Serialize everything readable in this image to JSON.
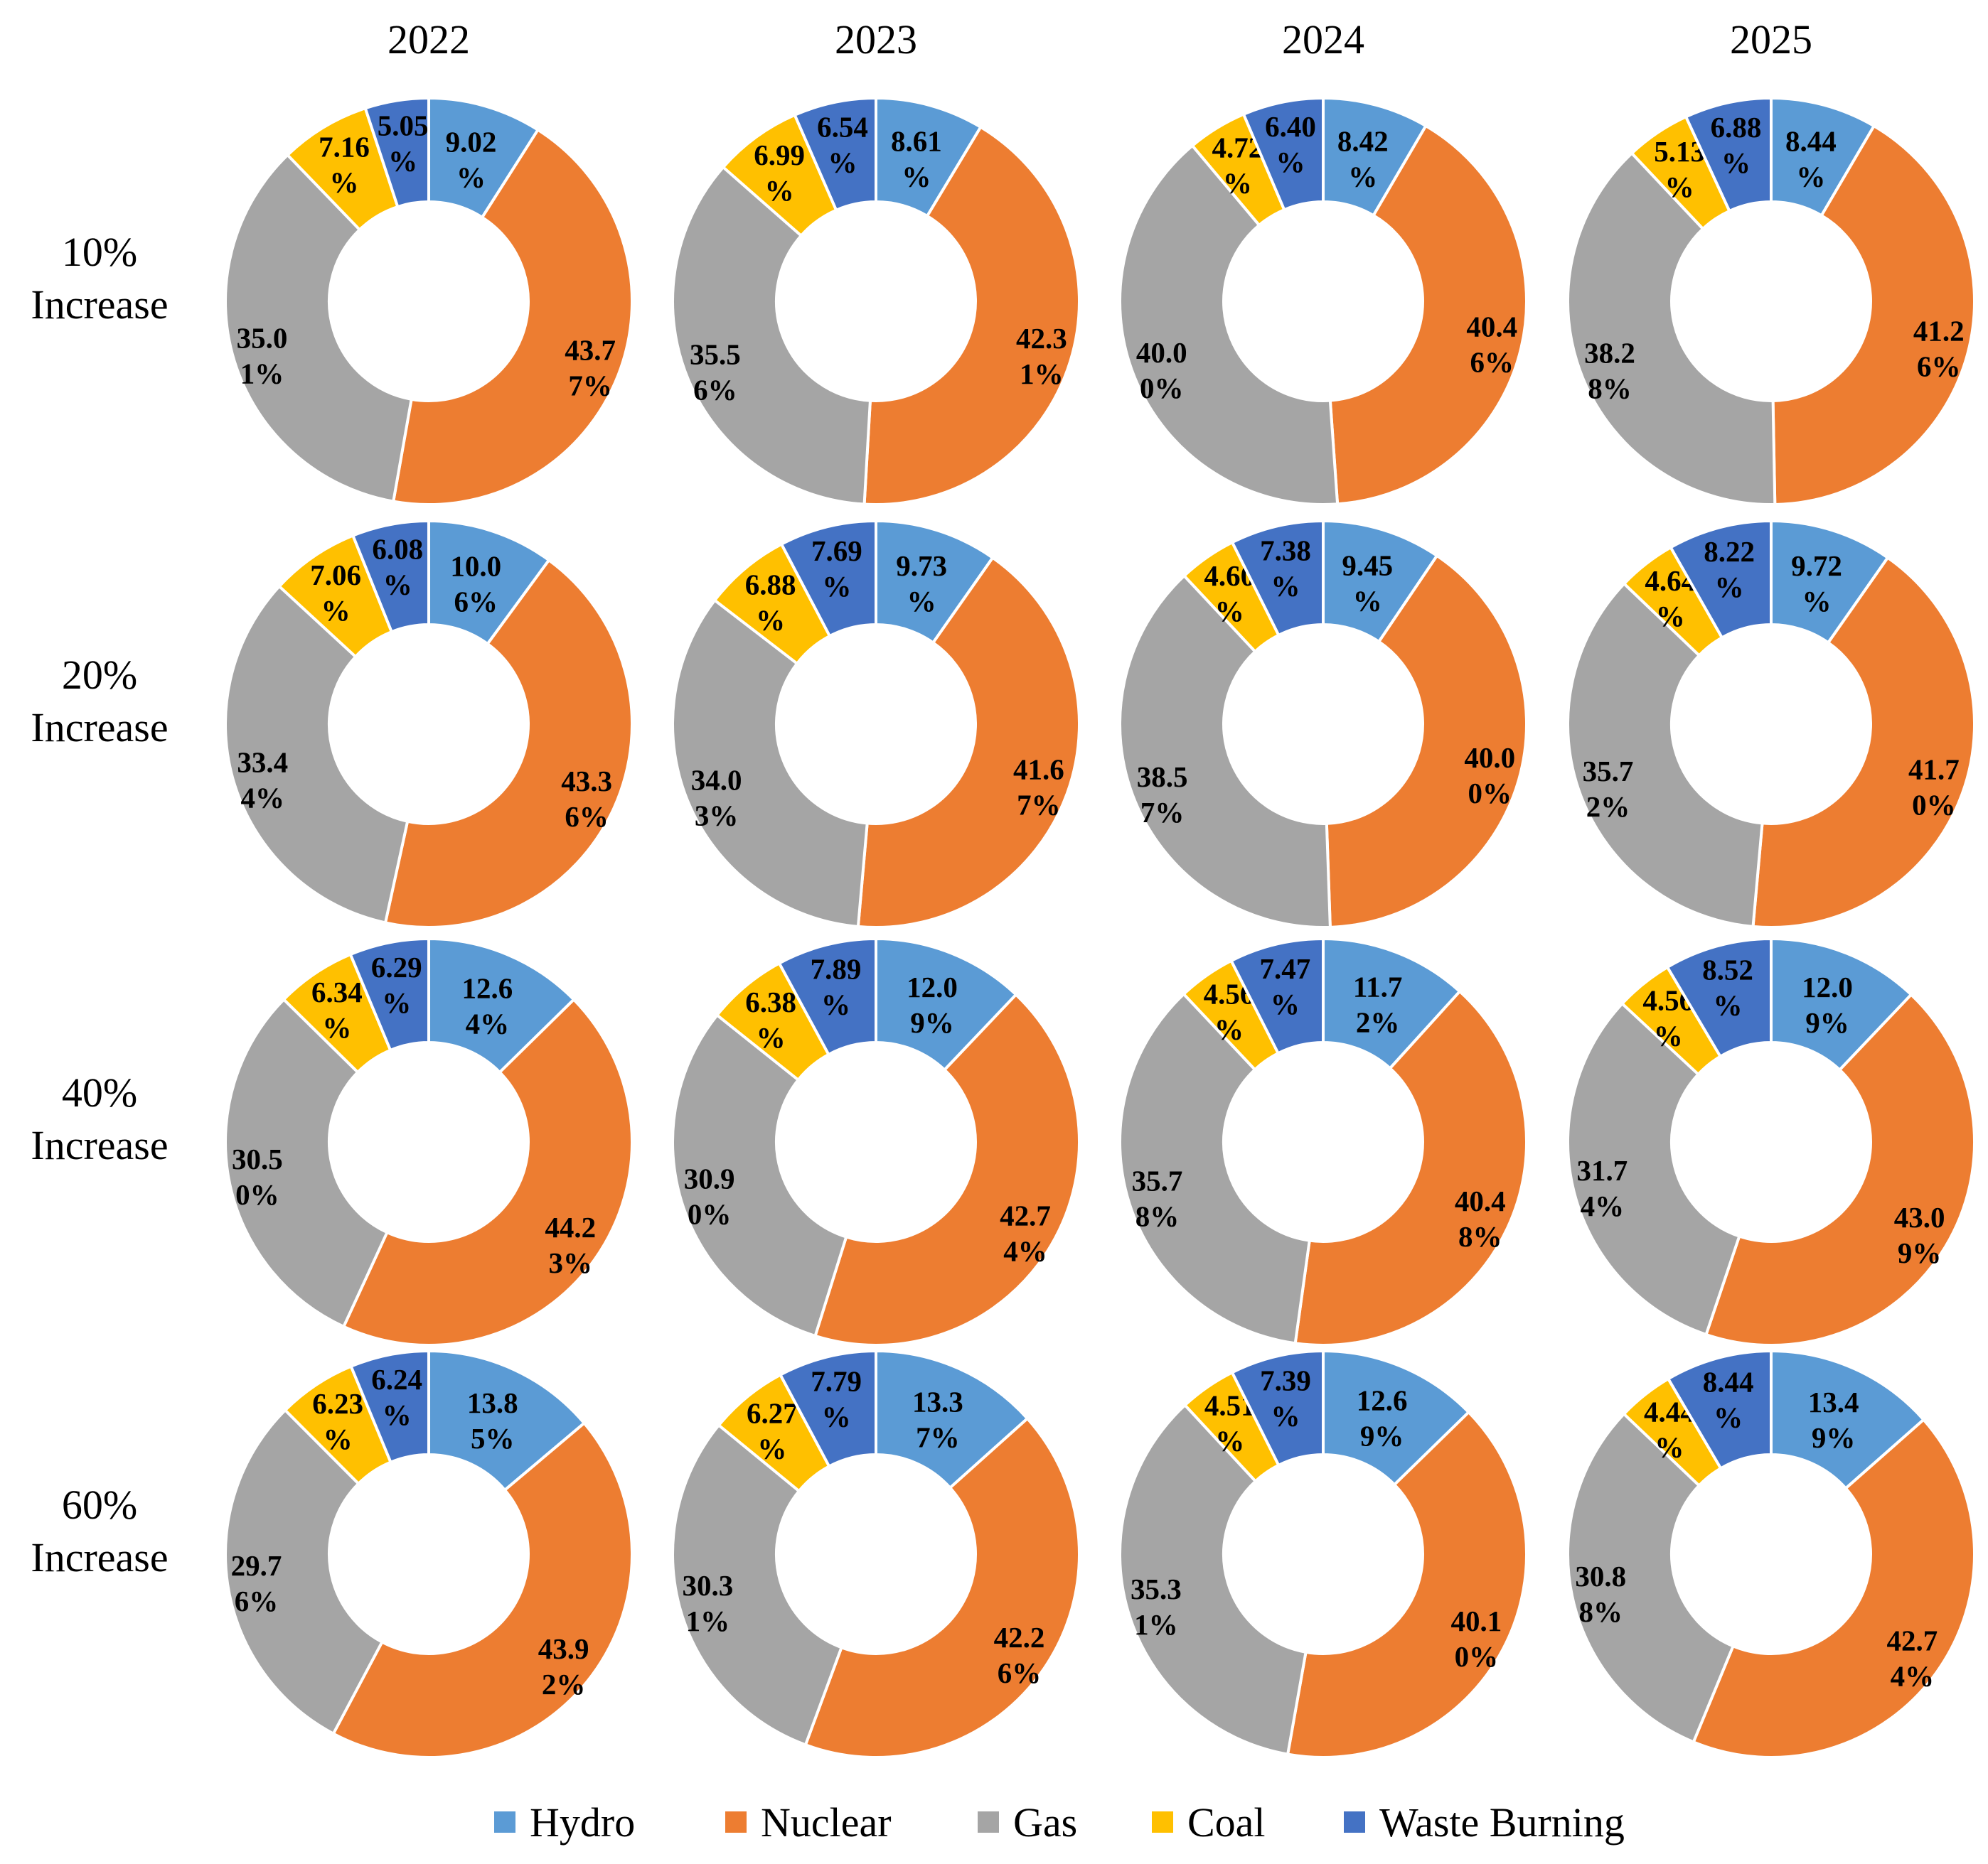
{
  "chart_data": {
    "type": "pie",
    "variant": "donut",
    "layout": "grid",
    "columns": [
      "2022",
      "2023",
      "2024",
      "2025"
    ],
    "rows": [
      [
        "10%",
        "Increase"
      ],
      [
        "20%",
        "Increase"
      ],
      [
        "40%",
        "Increase"
      ],
      [
        "60%",
        "Increase"
      ]
    ],
    "categories": [
      "Hydro",
      "Nuclear",
      "Gas",
      "Coal",
      "Waste Burning"
    ],
    "colors": [
      "#5B9BD5",
      "#ED7D31",
      "#A5A5A5",
      "#FFC000",
      "#4472C4"
    ],
    "legend_position": "bottom",
    "label_lines": [
      [
        [
          [
            "9.02",
            "%"
          ],
          [
            "43.7",
            "7%"
          ],
          [
            "35.0",
            "1%"
          ],
          [
            "7.16",
            "%"
          ],
          [
            "5.05",
            "%"
          ]
        ],
        [
          [
            "8.61",
            "%"
          ],
          [
            "42.3",
            "1%"
          ],
          [
            "35.5",
            "6%"
          ],
          [
            "6.99",
            "%"
          ],
          [
            "6.54",
            "%"
          ]
        ],
        [
          [
            "8.42",
            "%"
          ],
          [
            "40.4",
            "6%"
          ],
          [
            "40.0",
            "0%"
          ],
          [
            "4.72",
            "%"
          ],
          [
            "6.40",
            "%"
          ]
        ],
        [
          [
            "8.44",
            "%"
          ],
          [
            "41.2",
            "6%"
          ],
          [
            "38.2",
            "8%"
          ],
          [
            "5.13",
            "%"
          ],
          [
            "6.88",
            "%"
          ]
        ]
      ],
      [
        [
          [
            "10.0",
            "6%"
          ],
          [
            "43.3",
            "6%"
          ],
          [
            "33.4",
            "4%"
          ],
          [
            "7.06",
            "%"
          ],
          [
            "6.08",
            "%"
          ]
        ],
        [
          [
            "9.73",
            "%"
          ],
          [
            "41.6",
            "7%"
          ],
          [
            "34.0",
            "3%"
          ],
          [
            "6.88",
            "%"
          ],
          [
            "7.69",
            "%"
          ]
        ],
        [
          [
            "9.45",
            "%"
          ],
          [
            "40.0",
            "0%"
          ],
          [
            "38.5",
            "7%"
          ],
          [
            "4.60",
            "%"
          ],
          [
            "7.38",
            "%"
          ]
        ],
        [
          [
            "9.72",
            "%"
          ],
          [
            "41.7",
            "0%"
          ],
          [
            "35.7",
            "2%"
          ],
          [
            "4.64",
            "%"
          ],
          [
            "8.22",
            "%"
          ]
        ]
      ],
      [
        [
          [
            "12.6",
            "4%"
          ],
          [
            "44.2",
            "3%"
          ],
          [
            "30.5",
            "0%"
          ],
          [
            "6.34",
            "%"
          ],
          [
            "6.29",
            "%"
          ]
        ],
        [
          [
            "12.0",
            "9%"
          ],
          [
            "42.7",
            "4%"
          ],
          [
            "30.9",
            "0%"
          ],
          [
            "6.38",
            "%"
          ],
          [
            "7.89",
            "%"
          ]
        ],
        [
          [
            "11.7",
            "2%"
          ],
          [
            "40.4",
            "8%"
          ],
          [
            "35.7",
            "8%"
          ],
          [
            "4.56",
            "%"
          ],
          [
            "7.47",
            "%"
          ]
        ],
        [
          [
            "12.0",
            "9%"
          ],
          [
            "43.0",
            "9%"
          ],
          [
            "31.7",
            "4%"
          ],
          [
            "4.56",
            "%"
          ],
          [
            "8.52",
            "%"
          ]
        ]
      ],
      [
        [
          [
            "13.8",
            "5%"
          ],
          [
            "43.9",
            "2%"
          ],
          [
            "29.7",
            "6%"
          ],
          [
            "6.23",
            "%"
          ],
          [
            "6.24",
            "%"
          ]
        ],
        [
          [
            "13.3",
            "7%"
          ],
          [
            "42.2",
            "6%"
          ],
          [
            "30.3",
            "1%"
          ],
          [
            "6.27",
            "%"
          ],
          [
            "7.79",
            "%"
          ]
        ],
        [
          [
            "12.6",
            "9%"
          ],
          [
            "40.1",
            "0%"
          ],
          [
            "35.3",
            "1%"
          ],
          [
            "4.51",
            "%"
          ],
          [
            "7.39",
            "%"
          ]
        ],
        [
          [
            "13.4",
            "9%"
          ],
          [
            "42.7",
            "4%"
          ],
          [
            "30.8",
            "8%"
          ],
          [
            "4.44",
            "%"
          ],
          [
            "8.44",
            "%"
          ]
        ]
      ]
    ],
    "values": [
      [
        [
          9.02,
          43.77,
          35.01,
          7.16,
          5.05
        ],
        [
          8.61,
          42.31,
          35.56,
          6.99,
          6.54
        ],
        [
          8.42,
          40.46,
          40.0,
          4.72,
          6.4
        ],
        [
          8.44,
          41.26,
          38.28,
          5.13,
          6.88
        ]
      ],
      [
        [
          10.06,
          43.36,
          33.44,
          7.06,
          6.08
        ],
        [
          9.73,
          41.67,
          34.03,
          6.88,
          7.69
        ],
        [
          9.45,
          40.0,
          38.57,
          4.6,
          7.38
        ],
        [
          9.72,
          41.7,
          35.72,
          4.64,
          8.22
        ]
      ],
      [
        [
          12.64,
          44.23,
          30.5,
          6.34,
          6.29
        ],
        [
          12.09,
          42.74,
          30.9,
          6.38,
          7.89
        ],
        [
          11.72,
          40.48,
          35.78,
          4.56,
          7.47
        ],
        [
          12.09,
          43.09,
          31.74,
          4.56,
          8.52
        ]
      ],
      [
        [
          13.85,
          43.92,
          29.76,
          6.23,
          6.24
        ],
        [
          13.37,
          42.26,
          30.31,
          6.27,
          7.79
        ],
        [
          12.69,
          40.1,
          35.31,
          4.51,
          7.39
        ],
        [
          13.49,
          42.74,
          30.88,
          4.44,
          8.44
        ]
      ]
    ]
  }
}
